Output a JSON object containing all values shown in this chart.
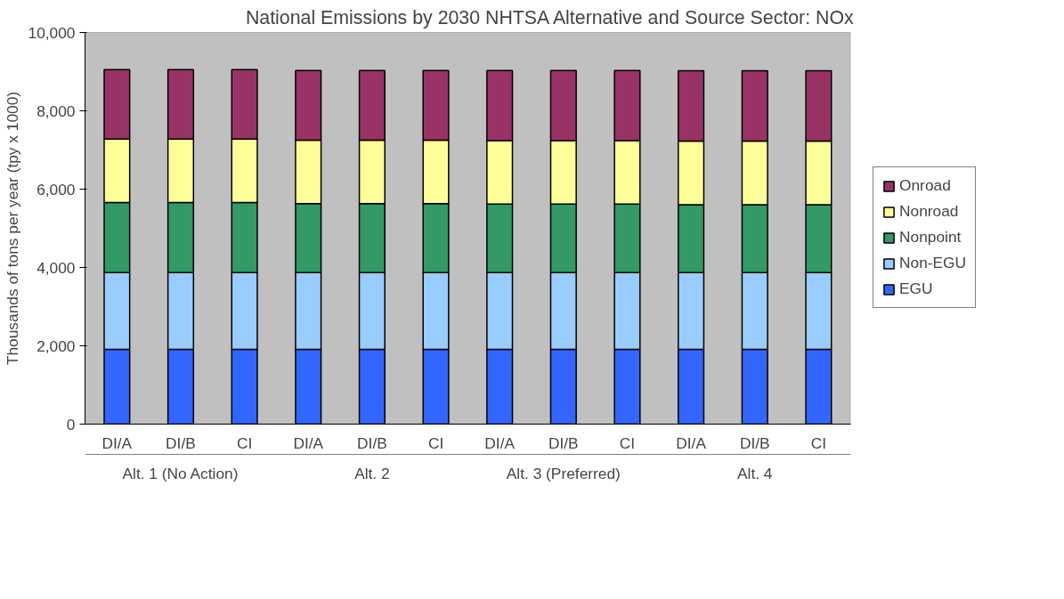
{
  "chart_data": {
    "type": "bar",
    "stacked": true,
    "title": "National Emissions by 2030 NHTSA Alternative and Source Sector: NOx",
    "ylabel": "Thousands of tons per year (tpy x 1000)",
    "categories": [
      "DI/A",
      "DI/B",
      "CI",
      "DI/A",
      "DI/B",
      "CI",
      "DI/A",
      "DI/B",
      "CI",
      "DI/A",
      "DI/B",
      "CI"
    ],
    "annotations": [
      "Alt. 1 (No Action)",
      "Alt. 2",
      "Alt. 3 (Preferred)",
      "Alt. 4"
    ],
    "series": [
      {
        "name": "EGU",
        "color": "#3366ff",
        "values": [
          1910,
          1910,
          1910,
          1910,
          1910,
          1910,
          1910,
          1910,
          1910,
          1910,
          1910,
          1910
        ]
      },
      {
        "name": "Non-EGU",
        "color": "#99ccff",
        "values": [
          1960,
          1960,
          1960,
          1960,
          1960,
          1960,
          1960,
          1960,
          1960,
          1960,
          1960,
          1960
        ]
      },
      {
        "name": "Nonpoint",
        "color": "#339966",
        "values": [
          1790,
          1790,
          1790,
          1760,
          1760,
          1760,
          1750,
          1750,
          1750,
          1730,
          1730,
          1730
        ]
      },
      {
        "name": "Nonroad",
        "color": "#ffff99",
        "values": [
          1620,
          1620,
          1620,
          1620,
          1620,
          1620,
          1620,
          1620,
          1620,
          1630,
          1630,
          1630
        ]
      },
      {
        "name": "Onroad",
        "color": "#993366",
        "values": [
          1770,
          1770,
          1770,
          1780,
          1780,
          1780,
          1790,
          1790,
          1790,
          1790,
          1790,
          1790
        ]
      }
    ],
    "ylim": [
      0,
      10000
    ],
    "yticks": [
      {
        "value": 0,
        "label": "0"
      },
      {
        "value": 2000,
        "label": "2,000"
      },
      {
        "value": 4000,
        "label": "4,000"
      },
      {
        "value": 6000,
        "label": "6,000"
      },
      {
        "value": 8000,
        "label": "8,000"
      },
      {
        "value": 10000,
        "label": "10,000"
      }
    ],
    "grid": "y",
    "legend": "right"
  }
}
